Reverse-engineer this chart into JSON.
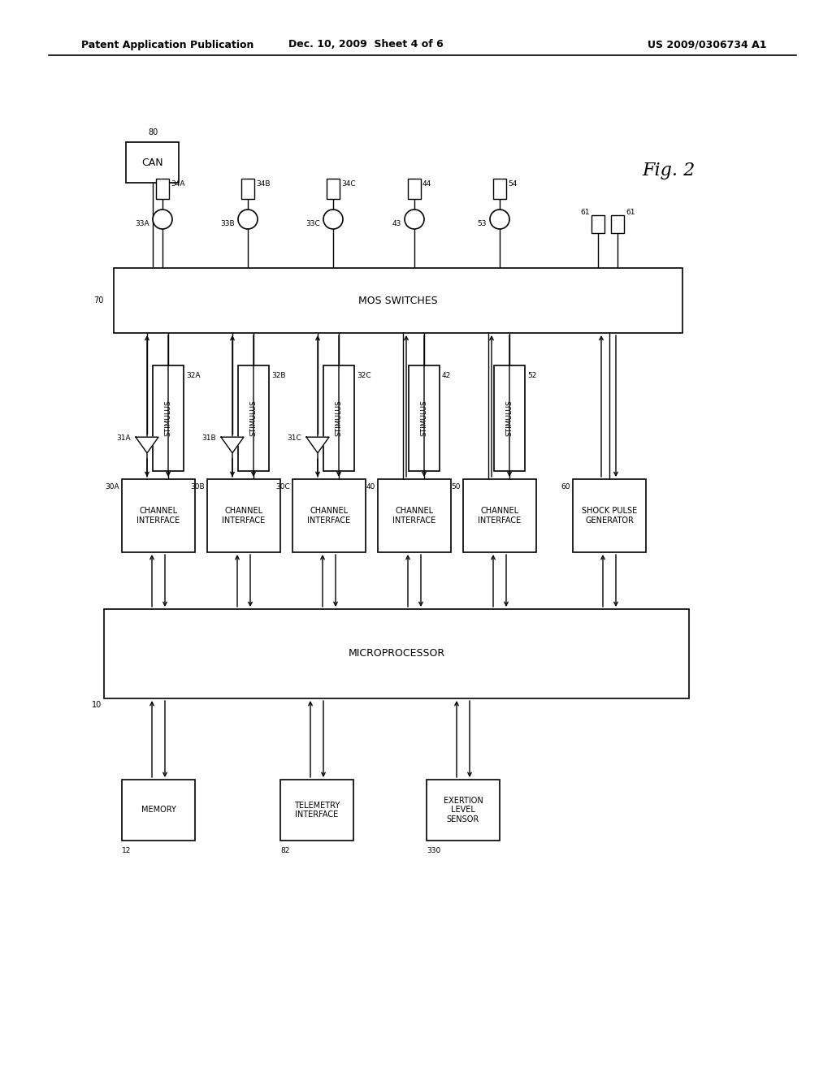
{
  "header_left": "Patent Application Publication",
  "header_mid": "Dec. 10, 2009  Sheet 4 of 6",
  "header_right": "US 2009/0306734 A1",
  "background": "#ffffff",
  "text_color": "#000000",
  "fig2_label": "Fig. 2",
  "label_80": "80",
  "label_70": "70",
  "label_10": "10",
  "can_label": "CAN",
  "mos_label": "MOS SWITCHES",
  "micro_label": "MICROPROCESSOR",
  "ch_labels": [
    "CHANNEL\nINTERFACE",
    "CHANNEL\nINTERFACE",
    "CHANNEL\nINTERFACE",
    "CHANNEL\nINTERFACE",
    "CHANNEL\nINTERFACE",
    "SHOCK PULSE\nGENERATOR"
  ],
  "ch_ids": [
    "30A",
    "30B",
    "30C",
    "40",
    "50",
    "60"
  ],
  "stim_ids": [
    "32A",
    "32B",
    "32C",
    "42",
    "52"
  ],
  "tri_ids": [
    "31A",
    "31B",
    "31C"
  ],
  "elec_circle_ids": [
    "33A",
    "33B",
    "33C",
    "43",
    "53"
  ],
  "elec_rect_ids": [
    "34A",
    "34B",
    "34C",
    "44",
    "54"
  ],
  "spg_rect_ids": [
    "61",
    "61"
  ],
  "bot_labels": [
    "MEMORY",
    "TELEMETRY\nINTERFACE",
    "EXERTION\nLEVEL\nSENSOR"
  ],
  "bot_ids": [
    "12",
    "82",
    "330"
  ]
}
